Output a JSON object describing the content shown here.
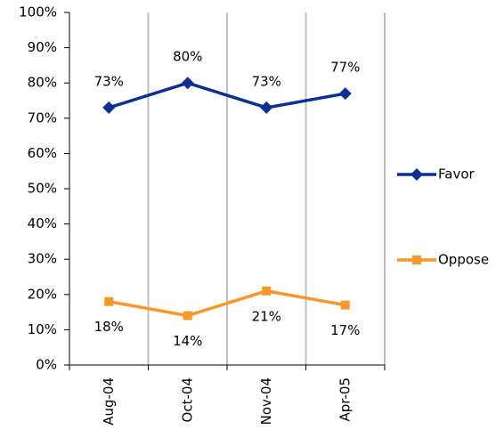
{
  "chart_data": {
    "type": "line",
    "categories": [
      "Aug-04",
      "Oct-04",
      "Nov-04",
      "Apr-05"
    ],
    "series": [
      {
        "name": "Favor",
        "color": "#0d2f8f",
        "marker": "diamond",
        "label_position": "above",
        "values": [
          73,
          80,
          73,
          77
        ],
        "value_labels": [
          "73%",
          "80%",
          "73%",
          "77%"
        ]
      },
      {
        "name": "Oppose",
        "color": "#f7982a",
        "marker": "square",
        "label_position": "below",
        "values": [
          18,
          14,
          21,
          17
        ],
        "value_labels": [
          "18%",
          "14%",
          "21%",
          "17%"
        ]
      }
    ],
    "ylim": [
      0,
      100
    ],
    "yticks": [
      {
        "value": 0,
        "label": "0%"
      },
      {
        "value": 10,
        "label": "10%"
      },
      {
        "value": 20,
        "label": "20%"
      },
      {
        "value": 30,
        "label": "30%"
      },
      {
        "value": 40,
        "label": "40%"
      },
      {
        "value": 50,
        "label": "50%"
      },
      {
        "value": 60,
        "label": "60%"
      },
      {
        "value": 70,
        "label": "70%"
      },
      {
        "value": 80,
        "label": "80%"
      },
      {
        "value": 90,
        "label": "90%"
      },
      {
        "value": 100,
        "label": "100%"
      }
    ],
    "xgrid": true,
    "legend": "right"
  }
}
